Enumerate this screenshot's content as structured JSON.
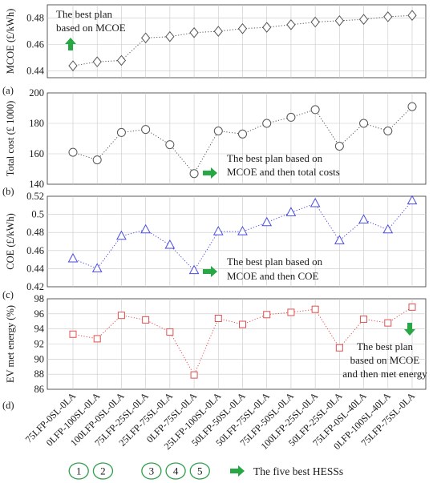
{
  "chart_data": [
    {
      "type": "line",
      "panel_label": "(a)",
      "ylabel": "MCOE (£/kWh)",
      "ylim": [
        0.435,
        0.49
      ],
      "yticks": [
        0.44,
        0.46,
        0.48
      ],
      "ytick_labels": [
        "0.44",
        "0.46",
        "0.48"
      ],
      "grid": true,
      "marker": "diamond",
      "color": "#555555",
      "values": [
        0.444,
        0.447,
        0.448,
        0.465,
        0.466,
        0.469,
        0.47,
        0.472,
        0.473,
        0.475,
        0.477,
        0.478,
        0.479,
        0.481,
        0.482
      ],
      "annotations": [
        {
          "text_lines": [
            "The best plan",
            "based on MCOE"
          ],
          "arrow": "up"
        }
      ]
    },
    {
      "type": "line",
      "panel_label": "(b)",
      "ylabel": "Total cost (£ 1000)",
      "ylim": [
        140,
        200
      ],
      "yticks": [
        140,
        160,
        180,
        200
      ],
      "ytick_labels": [
        "140",
        "160",
        "180",
        "200"
      ],
      "grid": true,
      "marker": "circle",
      "color": "#555555",
      "values": [
        161,
        156,
        174,
        176,
        166,
        147,
        175,
        173,
        180,
        184,
        189,
        165,
        180,
        175,
        191
      ],
      "annotations": [
        {
          "text_lines": [
            "The best plan based on",
            "MCOE and then total costs"
          ],
          "arrow": "right"
        }
      ]
    },
    {
      "type": "line",
      "panel_label": "(c)",
      "ylabel": "COE (£/kWh)",
      "ylim": [
        0.42,
        0.52
      ],
      "yticks": [
        0.42,
        0.44,
        0.46,
        0.48,
        0.5,
        0.52
      ],
      "ytick_labels": [
        "0.42",
        "0.44",
        "0.46",
        "0.48",
        "0.5",
        "0.52"
      ],
      "grid": true,
      "marker": "triangle",
      "color": "#4a4ae0",
      "values": [
        0.451,
        0.44,
        0.476,
        0.483,
        0.466,
        0.438,
        0.481,
        0.481,
        0.491,
        0.502,
        0.512,
        0.471,
        0.494,
        0.483,
        0.515
      ],
      "annotations": [
        {
          "text_lines": [
            "The best plan based on",
            "MCOE and then COE"
          ],
          "arrow": "right"
        }
      ]
    },
    {
      "type": "line",
      "panel_label": "(d)",
      "ylabel": "EV met energy (%)",
      "ylim": [
        86,
        98
      ],
      "yticks": [
        86,
        88,
        90,
        92,
        94,
        96,
        98
      ],
      "ytick_labels": [
        "86",
        "88",
        "90",
        "92",
        "94",
        "96",
        "98"
      ],
      "grid": true,
      "marker": "square",
      "color": "#e05050",
      "values": [
        93.3,
        92.7,
        95.8,
        95.2,
        93.6,
        87.9,
        95.4,
        94.6,
        95.9,
        96.2,
        96.6,
        91.5,
        95.3,
        94.8,
        96.9
      ],
      "annotations": [
        {
          "text_lines": [
            "The best plan",
            "based on MCOE",
            "and then met energy"
          ],
          "arrow": "down"
        }
      ]
    }
  ],
  "categories": [
    "75LFP-0SL-0LA",
    "0LFP-100SL-0LA",
    "100LFP-0SL-0LA",
    "75LFP-25SL-0LA",
    "25LFP-75SL-0LA",
    "0LFP-75SL-0LA",
    "25LFP-100SL-0LA",
    "50LFP-50SL-0LA",
    "50LFP-75SL-0LA",
    "75LFP-50SL-0LA",
    "100LFP-25SL-0LA",
    "50LFP-25SL-0LA",
    "75LFP-0SL-40LA",
    "0LFP-100SL-40LA",
    "75LFP-75SL-0LA"
  ],
  "best_hess": {
    "badges": [
      {
        "label": "1",
        "category_index": 1
      },
      {
        "label": "2",
        "category_index": 2
      },
      {
        "label": "3",
        "category_index": 4
      },
      {
        "label": "4",
        "category_index": 5
      },
      {
        "label": "5",
        "category_index": 6
      }
    ],
    "badge_color": "#2e9e4a",
    "legend_text": "The five best HESSs"
  },
  "colors": {
    "arrow": "#27a844",
    "grid": "#c8c8c8",
    "axis": "#333333"
  }
}
